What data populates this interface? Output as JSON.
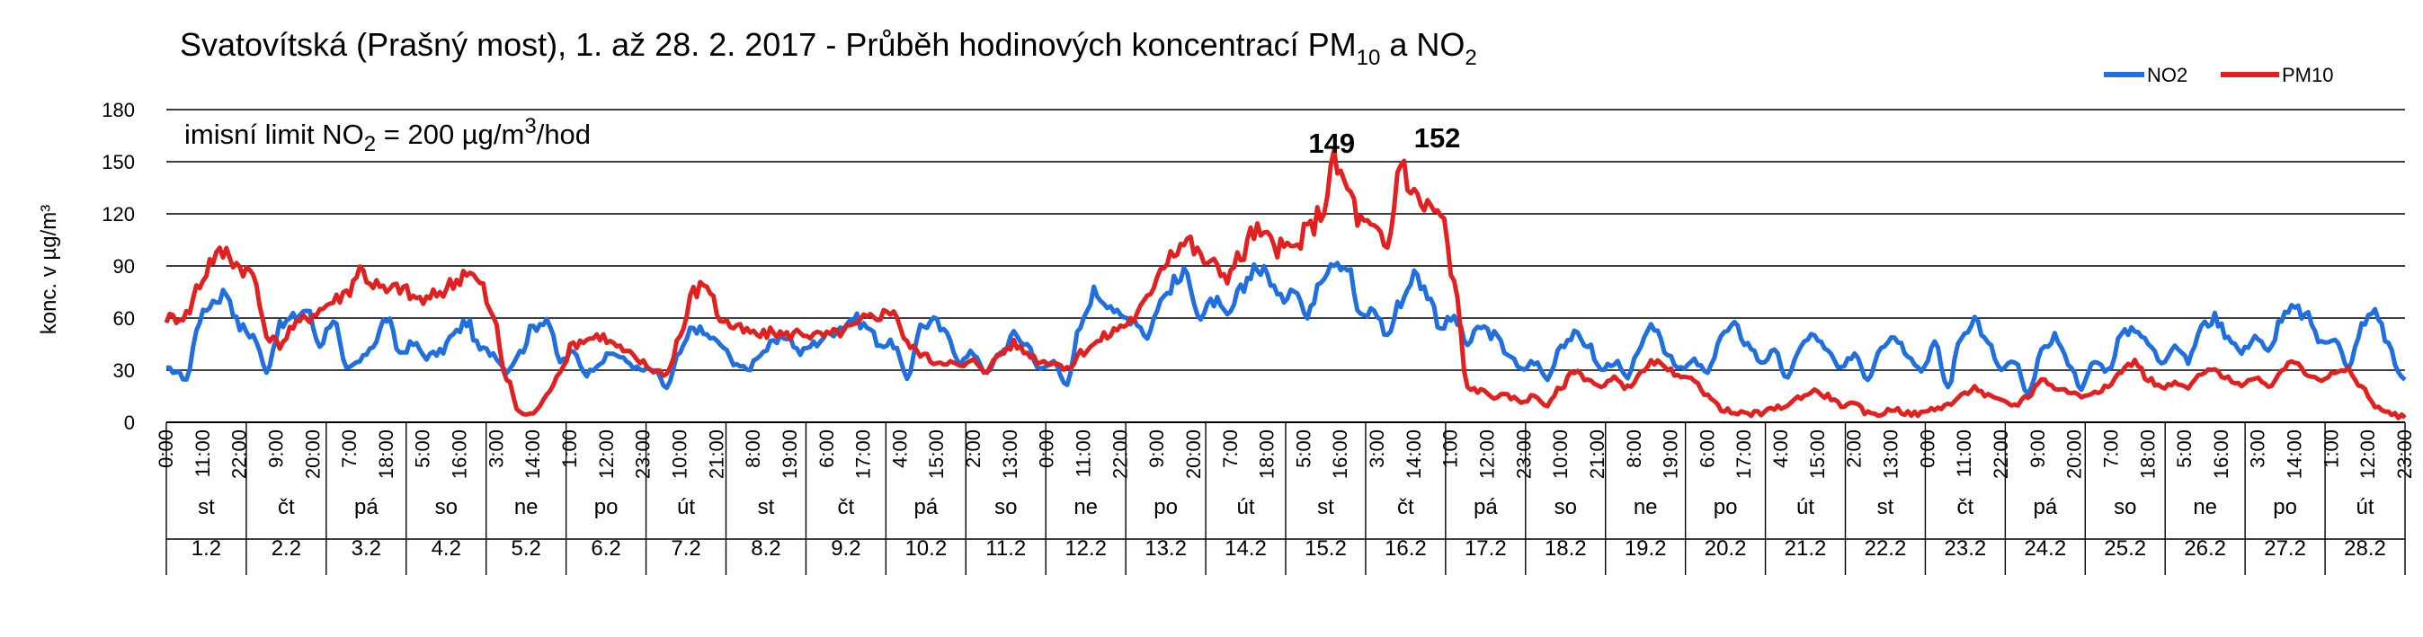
{
  "chart_data": {
    "type": "line",
    "title": "Svatovítská (Prašný most), 1. až 28. 2. 2017 - Průběh hodinových koncentrací PM",
    "title_pm_sub": "10",
    "title_mid": " a NO",
    "title_no_sub": "2",
    "ylabel": "konc. v µg/m³",
    "ylim": [
      0,
      180
    ],
    "yticks": [
      0,
      30,
      60,
      90,
      120,
      150,
      180
    ],
    "grid": true,
    "legend_position": "top-right",
    "annotation": {
      "pre": "imisní limit NO",
      "sub": "2",
      "mid": " = 200 µg/m",
      "sup": "3",
      "post": "/hod"
    },
    "peak_labels": [
      {
        "day_index": 14,
        "hour": 16,
        "value": 149,
        "text": "149"
      },
      {
        "day_index": 15,
        "hour": 15,
        "value": 152,
        "text": "152"
      }
    ],
    "hours_total": 672,
    "x_time_labels": [
      "0:00",
      "11:00",
      "22:00",
      "9:00",
      "20:00",
      "7:00",
      "18:00",
      "5:00",
      "16:00",
      "3:00",
      "14:00",
      "1:00",
      "12:00",
      "23:00",
      "10:00",
      "21:00",
      "8:00",
      "19:00",
      "6:00",
      "17:00",
      "4:00",
      "15:00",
      "2:00",
      "13:00",
      "0:00",
      "11:00",
      "22:00",
      "9:00",
      "20:00",
      "7:00",
      "18:00",
      "5:00",
      "16:00",
      "3:00",
      "14:00",
      "1:00",
      "12:00",
      "23:00",
      "10:00",
      "21:00",
      "8:00",
      "19:00",
      "6:00",
      "17:00",
      "4:00",
      "15:00",
      "2:00",
      "13:00",
      "0:00",
      "11:00",
      "22:00",
      "9:00",
      "20:00",
      "7:00",
      "18:00",
      "5:00",
      "16:00",
      "3:00",
      "14:00",
      "1:00",
      "12:00",
      "23:00"
    ],
    "days": [
      "st",
      "čt",
      "pá",
      "so",
      "ne",
      "po",
      "út",
      "st",
      "čt",
      "pá",
      "so",
      "ne",
      "po",
      "út",
      "st",
      "čt",
      "pá",
      "so",
      "ne",
      "po",
      "út",
      "st",
      "čt",
      "pá",
      "so",
      "ne",
      "po",
      "út"
    ],
    "dates": [
      "1.2",
      "2.2",
      "3.2",
      "4.2",
      "5.2",
      "6.2",
      "7.2",
      "8.2",
      "9.2",
      "10.2",
      "11.2",
      "12.2",
      "13.2",
      "14.2",
      "15.2",
      "16.2",
      "17.2",
      "18.2",
      "19.2",
      "20.2",
      "21.2",
      "22.2",
      "23.2",
      "24.2",
      "25.2",
      "26.2",
      "27.2",
      "28.2"
    ],
    "series": [
      {
        "name": "NO2",
        "color": "#1f6fe0",
        "daily_profile": [
          [
            30,
            25,
            60,
            70,
            75,
            55
          ],
          [
            50,
            30,
            55,
            60,
            65,
            45
          ],
          [
            60,
            30,
            35,
            45,
            60,
            40
          ],
          [
            45,
            38,
            40,
            50,
            58,
            42
          ],
          [
            40,
            30,
            40,
            55,
            60,
            35
          ],
          [
            40,
            28,
            35,
            40,
            35,
            30
          ],
          [
            30,
            20,
            40,
            55,
            50,
            45
          ],
          [
            35,
            30,
            40,
            45,
            50,
            40
          ],
          [
            45,
            50,
            55,
            60,
            55,
            45
          ],
          [
            45,
            25,
            55,
            58,
            50,
            35
          ],
          [
            40,
            28,
            40,
            50,
            45,
            30
          ],
          [
            35,
            22,
            55,
            75,
            70,
            60
          ],
          [
            60,
            50,
            70,
            80,
            85,
            60
          ],
          [
            70,
            60,
            75,
            90,
            85,
            70
          ],
          [
            80,
            60,
            85,
            95,
            90,
            60
          ],
          [
            65,
            50,
            70,
            85,
            75,
            55
          ],
          [
            60,
            45,
            55,
            50,
            40,
            30
          ],
          [
            35,
            25,
            45,
            50,
            45,
            30
          ],
          [
            35,
            25,
            45,
            55,
            40,
            30
          ],
          [
            35,
            28,
            50,
            55,
            45,
            35
          ],
          [
            40,
            25,
            45,
            50,
            40,
            30
          ],
          [
            40,
            25,
            45,
            50,
            40,
            30
          ],
          [
            45,
            20,
            50,
            60,
            45,
            30
          ],
          [
            35,
            15,
            40,
            50,
            35,
            20
          ],
          [
            35,
            30,
            50,
            55,
            45,
            35
          ],
          [
            45,
            35,
            55,
            60,
            50,
            40
          ],
          [
            50,
            40,
            60,
            65,
            60,
            45
          ],
          [
            50,
            30,
            55,
            65,
            45,
            25
          ]
        ]
      },
      {
        "name": "PM10",
        "color": "#e32020",
        "daily_profile": [
          [
            60,
            62,
            80,
            95,
            98,
            90
          ],
          [
            85,
            50,
            45,
            55,
            60,
            65
          ],
          [
            70,
            75,
            88,
            80,
            75,
            78
          ],
          [
            72,
            70,
            75,
            80,
            88,
            80
          ],
          [
            60,
            25,
            5,
            5,
            15,
            30
          ],
          [
            45,
            48,
            50,
            45,
            40,
            35
          ],
          [
            30,
            28,
            50,
            75,
            80,
            60
          ],
          [
            55,
            52,
            50,
            52,
            50,
            52
          ],
          [
            50,
            50,
            52,
            55,
            60,
            62
          ],
          [
            65,
            45,
            40,
            35,
            35,
            32
          ],
          [
            35,
            30,
            40,
            45,
            40,
            35
          ],
          [
            35,
            30,
            40,
            45,
            50,
            55
          ],
          [
            60,
            70,
            90,
            100,
            105,
            95
          ],
          [
            90,
            85,
            95,
            110,
            105,
            100
          ],
          [
            100,
            110,
            120,
            149,
            135,
            115
          ],
          [
            110,
            100,
            152,
            130,
            125,
            120
          ],
          [
            80,
            20,
            18,
            15,
            15,
            12
          ],
          [
            15,
            10,
            20,
            30,
            25,
            20
          ],
          [
            25,
            20,
            28,
            35,
            30,
            25
          ],
          [
            25,
            15,
            8,
            5,
            5,
            5
          ],
          [
            8,
            10,
            15,
            18,
            15,
            10
          ],
          [
            10,
            5,
            5,
            8,
            5,
            5
          ],
          [
            8,
            10,
            15,
            20,
            15,
            12
          ],
          [
            10,
            15,
            25,
            20,
            18,
            15
          ],
          [
            18,
            20,
            30,
            35,
            25,
            20
          ],
          [
            22,
            20,
            28,
            30,
            25,
            22
          ],
          [
            25,
            20,
            30,
            35,
            28,
            25
          ],
          [
            28,
            30,
            20,
            10,
            5,
            3
          ]
        ]
      }
    ]
  }
}
